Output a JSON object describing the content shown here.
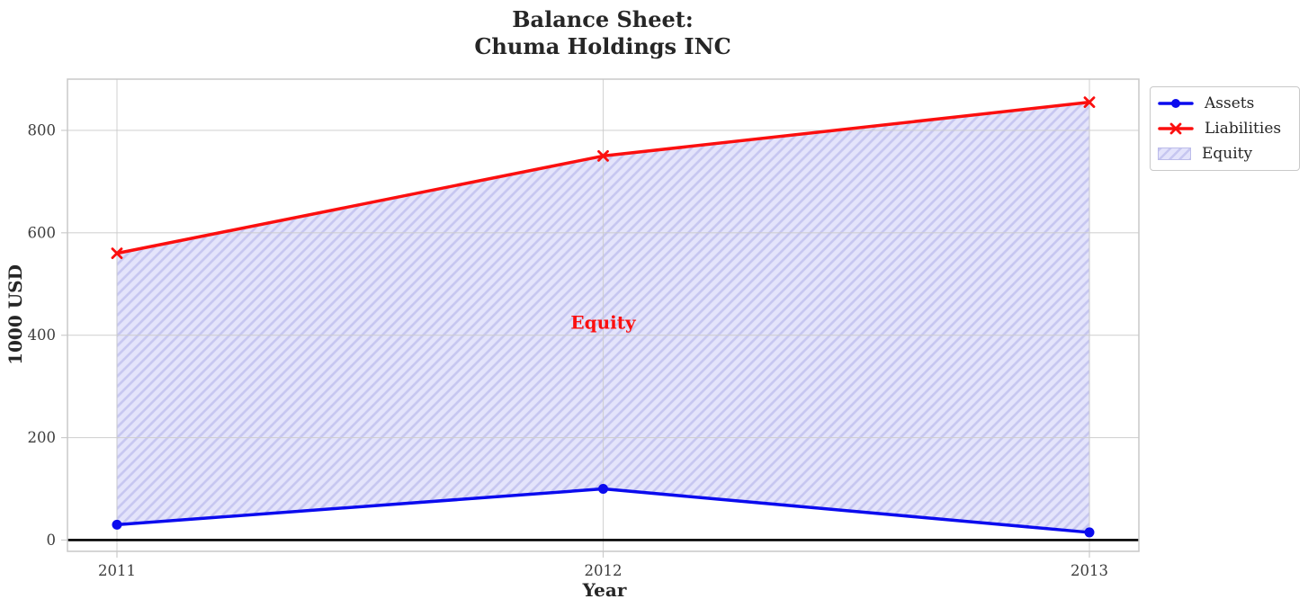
{
  "chart_data": {
    "type": "line",
    "title_lines": [
      "Balance Sheet:",
      "Chuma Holdings INC"
    ],
    "xlabel": "Year",
    "ylabel": "1000 USD",
    "x": [
      2011,
      2012,
      2013
    ],
    "x_tick_labels": [
      "2011",
      "2012",
      "2013"
    ],
    "yticks": [
      0,
      200,
      400,
      600,
      800
    ],
    "ylim": [
      -22,
      900
    ],
    "grid": true,
    "zero_line": true,
    "series": [
      {
        "name": "Assets",
        "color": "#0b0bee",
        "marker": "circle",
        "values": [
          30,
          100,
          15
        ]
      },
      {
        "name": "Liabilities",
        "color": "#fb0f0f",
        "marker": "x",
        "values": [
          560,
          750,
          855
        ]
      }
    ],
    "fill_between": {
      "label": "Equity",
      "lower": "Assets",
      "upper": "Liabilities",
      "facecolor": "#e4e4fb",
      "hatch": "/",
      "hatch_color": "#c6c6f0"
    },
    "annotation": {
      "text": "Equity",
      "color": "#fb0f0f",
      "x": 2012,
      "y": 425
    },
    "legend": {
      "position": "upper right"
    },
    "colors": {
      "grid": "#cccccc",
      "spine": "#c8c8c8",
      "tick_text": "#3d3d3d",
      "zero_line": "#000000"
    }
  }
}
